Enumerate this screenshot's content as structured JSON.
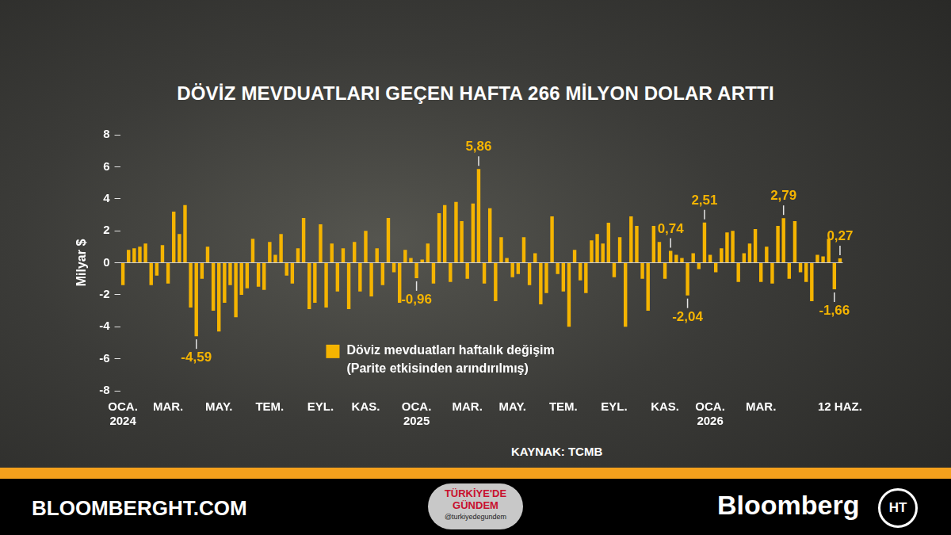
{
  "chart_data": {
    "type": "bar",
    "title": "DÖVİZ MEVDUATLARI GEÇEN HAFTA 266 MİLYON DOLAR ARTTI",
    "y_label": "Milyar $",
    "source": "KAYNAK: TCMB",
    "categories": [
      "OCA.\n2024",
      null,
      null,
      null,
      null,
      null,
      null,
      null,
      "MAR.",
      null,
      null,
      null,
      null,
      null,
      null,
      null,
      null,
      "MAY.",
      null,
      null,
      null,
      null,
      null,
      null,
      null,
      null,
      "TEM.",
      null,
      null,
      null,
      null,
      null,
      null,
      null,
      null,
      "EYL.",
      null,
      null,
      null,
      null,
      null,
      null,
      null,
      "KAS.",
      null,
      null,
      null,
      null,
      null,
      null,
      null,
      null,
      "OCA.\n2025",
      null,
      null,
      null,
      null,
      null,
      null,
      null,
      null,
      "MAR.",
      null,
      null,
      null,
      null,
      null,
      null,
      null,
      "MAY.",
      null,
      null,
      null,
      null,
      null,
      null,
      null,
      null,
      "TEM.",
      null,
      null,
      null,
      null,
      null,
      null,
      null,
      null,
      "EYL.",
      null,
      null,
      null,
      null,
      null,
      null,
      null,
      null,
      "KAS.",
      null,
      null,
      null,
      null,
      null,
      null,
      null,
      "OCA.\n2026",
      null,
      null,
      null,
      null,
      null,
      null,
      null,
      null,
      "MAR.",
      null,
      null,
      null,
      null,
      null,
      null,
      null,
      null,
      null,
      null,
      null,
      null,
      null,
      "12 HAZ."
    ],
    "series": [
      {
        "name": "Döviz mevduatları haftalık değişim\n(Parite etkisinden arındırılmış)",
        "color": "#f5b400",
        "values": [
          -1.4,
          0.8,
          0.9,
          1.0,
          1.2,
          -1.4,
          -0.8,
          1.1,
          -1.3,
          3.2,
          1.8,
          3.6,
          -2.8,
          -4.59,
          -1.0,
          1.0,
          -3.0,
          -4.3,
          -2.5,
          -1.4,
          -3.4,
          -2.0,
          -1.6,
          1.5,
          -1.5,
          -1.7,
          1.3,
          0.5,
          1.8,
          -0.8,
          -1.3,
          0.9,
          2.8,
          -2.9,
          -2.5,
          2.4,
          -2.8,
          1.2,
          -1.8,
          0.9,
          -2.9,
          1.3,
          -1.8,
          2.0,
          -2.1,
          0.9,
          -1.4,
          2.8,
          -0.6,
          -2.5,
          0.8,
          0.3,
          -0.96,
          0.2,
          1.2,
          -1.3,
          3.1,
          3.6,
          -1.2,
          3.8,
          2.6,
          -1.0,
          3.7,
          5.86,
          -1.3,
          3.4,
          -2.4,
          1.6,
          0.3,
          -0.9,
          -0.7,
          1.6,
          -1.4,
          0.6,
          -2.6,
          -1.9,
          2.9,
          -0.7,
          -1.8,
          -4.0,
          0.8,
          -1.1,
          -1.9,
          1.4,
          1.8,
          1.2,
          2.5,
          -0.9,
          1.6,
          -4.0,
          2.9,
          2.3,
          -1.0,
          -3.0,
          2.3,
          1.3,
          -1.0,
          0.74,
          0.5,
          0.3,
          -2.04,
          0.6,
          -0.4,
          2.51,
          0.5,
          -0.6,
          0.9,
          1.9,
          2.0,
          -1.2,
          0.6,
          1.2,
          2.1,
          -1.2,
          1.0,
          -1.3,
          2.3,
          2.79,
          -1.0,
          2.6,
          -0.6,
          -1.2,
          -2.4,
          0.5,
          0.4,
          1.5,
          -1.66,
          0.27
        ],
        "value_labels": [
          null,
          null,
          null,
          null,
          null,
          null,
          null,
          null,
          null,
          null,
          null,
          null,
          null,
          "-4,59",
          null,
          null,
          null,
          null,
          null,
          null,
          null,
          null,
          null,
          null,
          null,
          null,
          null,
          null,
          null,
          null,
          null,
          null,
          null,
          null,
          null,
          null,
          null,
          null,
          null,
          null,
          null,
          null,
          null,
          null,
          null,
          null,
          null,
          null,
          null,
          null,
          null,
          null,
          "-0,96",
          null,
          null,
          null,
          null,
          null,
          null,
          null,
          null,
          null,
          null,
          "5,86",
          null,
          null,
          null,
          null,
          null,
          null,
          null,
          null,
          null,
          null,
          null,
          null,
          null,
          null,
          null,
          null,
          null,
          null,
          null,
          null,
          null,
          null,
          null,
          null,
          null,
          null,
          null,
          null,
          null,
          null,
          null,
          null,
          null,
          "0,74",
          null,
          null,
          "-2,04",
          null,
          null,
          "2,51",
          null,
          null,
          null,
          null,
          null,
          null,
          null,
          null,
          null,
          null,
          null,
          null,
          null,
          "2,79",
          null,
          null,
          null,
          null,
          null,
          null,
          null,
          null,
          "-1,66",
          "0,27"
        ]
      }
    ],
    "ylim": [
      -8,
      8
    ],
    "yticks": [
      -8,
      -6,
      -4,
      -2,
      0,
      2,
      4,
      6,
      8
    ],
    "grid": false,
    "legend": "bottom"
  },
  "footer": {
    "site": "BLOOMBERGHT.COM",
    "logo": "Bloomberg",
    "logo_mark": "HT"
  },
  "badge": [
    "TÜRKİYE'DE",
    "GÜNDEM",
    "@turkiyedegundem"
  ]
}
